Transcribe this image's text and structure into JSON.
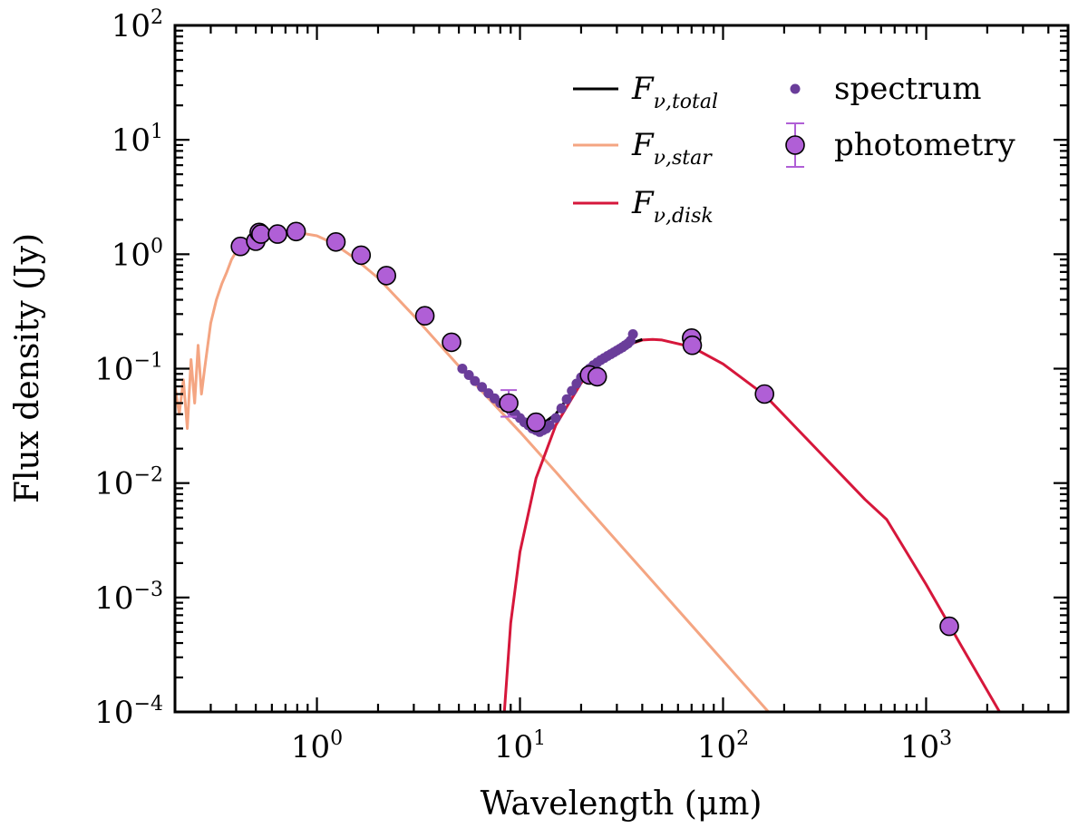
{
  "chart_data": {
    "type": "scatter",
    "xlabel": "Wavelength (μm)",
    "ylabel": "Flux density (Jy)",
    "x_scale": "log",
    "y_scale": "log",
    "xlim": [
      0.2,
      5000
    ],
    "ylim": [
      0.0001,
      100
    ],
    "x_tick_labels": [
      {
        "value": 1,
        "base": "10",
        "exp": "0"
      },
      {
        "value": 10,
        "base": "10",
        "exp": "1"
      },
      {
        "value": 100,
        "base": "10",
        "exp": "2"
      },
      {
        "value": 1000,
        "base": "10",
        "exp": "3"
      }
    ],
    "y_tick_labels": [
      {
        "value": 0.0001,
        "base": "10",
        "exp": "−4"
      },
      {
        "value": 0.001,
        "base": "10",
        "exp": "−3"
      },
      {
        "value": 0.01,
        "base": "10",
        "exp": "−2"
      },
      {
        "value": 0.1,
        "base": "10",
        "exp": "−1"
      },
      {
        "value": 1,
        "base": "10",
        "exp": "0"
      },
      {
        "value": 10,
        "base": "10",
        "exp": "1"
      },
      {
        "value": 100,
        "base": "10",
        "exp": "2"
      }
    ],
    "grid": false,
    "legend_placement": "top-right",
    "legend": [
      {
        "kind": "line",
        "base": "F",
        "sub": "ν,total",
        "color": "#000000"
      },
      {
        "kind": "line",
        "base": "F",
        "sub": "ν,star",
        "color": "#f4a582"
      },
      {
        "kind": "line",
        "base": "F",
        "sub": "ν,disk",
        "color": "#d6173b"
      },
      {
        "kind": "dot",
        "label": "spectrum",
        "color": "#6a3d9a"
      },
      {
        "kind": "errorbar-marker",
        "label": "photometry",
        "color": "#b05fd6"
      }
    ],
    "series": [
      {
        "name": "F_ν,star",
        "kind": "line",
        "color": "#f4a582",
        "x": [
          0.2,
          0.21,
          0.22,
          0.23,
          0.24,
          0.25,
          0.26,
          0.27,
          0.28,
          0.3,
          0.32,
          0.34,
          0.36,
          0.38,
          0.4,
          0.45,
          0.5,
          0.6,
          0.7,
          0.8,
          1.0,
          1.2,
          1.5,
          2.0,
          3.0,
          5.0,
          7.0,
          10,
          15,
          20,
          30,
          50,
          100,
          200
        ],
        "y": [
          0.07,
          0.04,
          0.08,
          0.03,
          0.12,
          0.05,
          0.16,
          0.06,
          0.1,
          0.25,
          0.4,
          0.55,
          0.7,
          0.9,
          1.05,
          1.25,
          1.4,
          1.5,
          1.55,
          1.55,
          1.45,
          1.25,
          0.95,
          0.62,
          0.29,
          0.105,
          0.055,
          0.028,
          0.0125,
          0.007,
          0.0031,
          0.00112,
          0.00028,
          7e-05
        ]
      },
      {
        "name": "F_ν,disk",
        "kind": "line",
        "color": "#d6173b",
        "x": [
          8.3,
          9,
          10,
          12,
          15,
          20,
          25,
          30,
          40,
          45,
          50,
          70,
          100,
          160,
          300,
          500,
          640,
          1000,
          1500,
          2300
        ],
        "y": [
          8e-05,
          0.0006,
          0.0025,
          0.011,
          0.032,
          0.075,
          0.115,
          0.15,
          0.178,
          0.18,
          0.178,
          0.155,
          0.11,
          0.059,
          0.0185,
          0.0072,
          0.0048,
          0.0013,
          0.00037,
          0.0001
        ]
      },
      {
        "name": "F_ν,total",
        "kind": "line",
        "color": "#000000",
        "x": [
          5.2,
          7,
          10,
          12,
          15,
          20,
          25,
          30,
          40
        ],
        "y": [
          0.098,
          0.06,
          0.035,
          0.03,
          0.04,
          0.08,
          0.118,
          0.152,
          0.18
        ]
      },
      {
        "name": "spectrum",
        "kind": "points",
        "color": "#6a3d9a",
        "x": [
          5.2,
          5.6,
          6.0,
          6.5,
          7.0,
          7.5,
          8.0,
          8.5,
          9.0,
          9.5,
          10.0,
          10.5,
          11.0,
          11.5,
          12.0,
          12.5,
          13.0,
          13.5,
          14.0,
          15.0,
          16.0,
          17.0,
          18.0,
          19.0,
          20.0,
          21.0,
          22.0,
          23.0,
          24.0,
          25.0,
          26.0,
          27.0,
          28.0,
          29.0,
          30.0,
          31.0,
          32.0,
          33.0,
          34.0,
          35.0,
          36.0
        ],
        "y": [
          0.1,
          0.088,
          0.078,
          0.069,
          0.061,
          0.055,
          0.05,
          0.046,
          0.043,
          0.04,
          0.037,
          0.034,
          0.032,
          0.03,
          0.029,
          0.028,
          0.029,
          0.03,
          0.032,
          0.037,
          0.045,
          0.054,
          0.064,
          0.074,
          0.084,
          0.093,
          0.1,
          0.107,
          0.113,
          0.119,
          0.124,
          0.129,
          0.134,
          0.139,
          0.144,
          0.149,
          0.154,
          0.16,
          0.166,
          0.175,
          0.2
        ]
      },
      {
        "name": "photometry",
        "kind": "errorbar",
        "color": "#b05fd6",
        "points": [
          {
            "x": 0.42,
            "y": 1.17,
            "yerr": [
              0,
              0
            ]
          },
          {
            "x": 0.5,
            "y": 1.3,
            "yerr": [
              0,
              0
            ]
          },
          {
            "x": 0.52,
            "y": 1.55,
            "yerr": [
              0,
              0
            ]
          },
          {
            "x": 0.53,
            "y": 1.5,
            "yerr": [
              0,
              0
            ]
          },
          {
            "x": 0.64,
            "y": 1.5,
            "yerr": [
              0,
              0
            ]
          },
          {
            "x": 0.79,
            "y": 1.58,
            "yerr": [
              0,
              0
            ]
          },
          {
            "x": 1.24,
            "y": 1.28,
            "yerr": [
              0,
              0
            ]
          },
          {
            "x": 1.65,
            "y": 0.98,
            "yerr": [
              0,
              0
            ]
          },
          {
            "x": 2.2,
            "y": 0.65,
            "yerr": [
              0,
              0
            ]
          },
          {
            "x": 3.4,
            "y": 0.29,
            "yerr": [
              0,
              0
            ]
          },
          {
            "x": 4.6,
            "y": 0.17,
            "yerr": [
              0,
              0
            ]
          },
          {
            "x": 8.8,
            "y": 0.05,
            "yerr": [
              0.012,
              0.015
            ]
          },
          {
            "x": 12.0,
            "y": 0.034,
            "yerr": [
              0,
              0
            ]
          },
          {
            "x": 22.0,
            "y": 0.088,
            "yerr": [
              0,
              0
            ]
          },
          {
            "x": 24.0,
            "y": 0.085,
            "yerr": [
              0,
              0
            ]
          },
          {
            "x": 70.0,
            "y": 0.185,
            "yerr": [
              0,
              0
            ]
          },
          {
            "x": 70.5,
            "y": 0.16,
            "yerr": [
              0,
              0
            ]
          },
          {
            "x": 160.0,
            "y": 0.06,
            "yerr": [
              0,
              0
            ]
          },
          {
            "x": 1300.0,
            "y": 0.00056,
            "yerr": [
              0,
              0
            ]
          }
        ]
      }
    ]
  }
}
